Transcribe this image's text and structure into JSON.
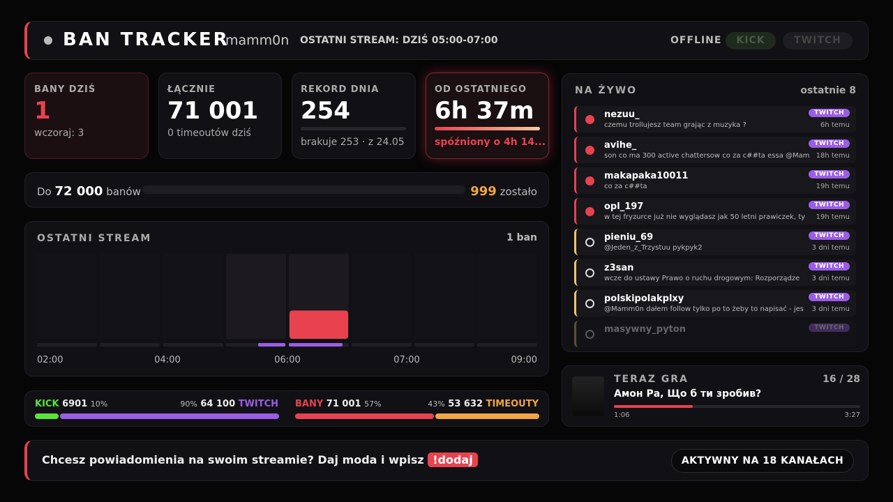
{
  "header": {
    "title": "BAN TRACKER",
    "channel": "mamm0n",
    "last_stream": "OSTATNI STREAM: DZIŚ 05:00-07:00",
    "status": "OFFLINE",
    "platforms": [
      "KICK",
      "TWITCH"
    ]
  },
  "stats": [
    {
      "label": "BANY DZIŚ",
      "value": "1",
      "sub": "wczoraj: 3"
    },
    {
      "label": "ŁĄCZNIE",
      "value": "71 001",
      "sub": "0 timeoutów dziś"
    },
    {
      "label": "REKORD DNIA",
      "value": "254",
      "sub": "brakuje 253 · z 24.05"
    },
    {
      "label": "OD OSTATNIEGO",
      "value": "6h 37m",
      "sub": "spóźniony o 4h 14..."
    }
  ],
  "goal": {
    "prefix": "Do",
    "target": "72 000",
    "unit": "banów",
    "remaining": "999",
    "remaining_label": "zostało"
  },
  "stream_chart": {
    "title": "OSTATNI STREAM",
    "summary": "1 ban",
    "values": [
      0,
      0,
      0,
      0,
      1,
      0,
      0,
      0
    ],
    "ylim": [
      0,
      3
    ],
    "x_labels": [
      "02:00",
      "04:00",
      "06:00",
      "07:00",
      "09:00"
    ],
    "color": "#e8424f"
  },
  "split": {
    "kick": {
      "label": "KICK",
      "value": "6901",
      "pct": {
        "value": 10,
        "label": "10%"
      },
      "color": "#5be33b"
    },
    "twitch": {
      "label": "TWITCH",
      "value": "64 100",
      "pct": {
        "value": 90,
        "label": "90%"
      },
      "color": "#9b5de5"
    },
    "bans": {
      "label": "BANY",
      "value": "71 001",
      "pct": {
        "value": 57,
        "label": "57%"
      },
      "color": "#e8424f"
    },
    "timeouts": {
      "label": "TIMEOUTY",
      "value": "53 632",
      "pct": {
        "value": 43,
        "label": "43%"
      },
      "color": "#f2a641"
    }
  },
  "live": {
    "title": "NA ŻYWO",
    "count_label": "ostatnie 8",
    "items": [
      {
        "type": "ban",
        "user": "nezuu_",
        "message": "czemu trollujesz team grając z muzyka ?",
        "platform": "TWITCH",
        "time": "6h temu"
      },
      {
        "type": "ban",
        "user": "avihe_",
        "message": "son co ma 300 active chattersow co za c##ta essa @Mam",
        "platform": "TWITCH",
        "time": "18h temu"
      },
      {
        "type": "ban",
        "user": "makapaka10011",
        "message": "co za c##ta",
        "platform": "TWITCH",
        "time": "19h temu"
      },
      {
        "type": "ban",
        "user": "opl_197",
        "message": "w tej fryzurce już nie wyglądasz jak 50 letni prawiczek, ty",
        "platform": "TWITCH",
        "time": "19h temu"
      },
      {
        "type": "timeout",
        "user": "pieniu_69",
        "message": "@Jeden_z_Trzystuu pykpyk2",
        "platform": "TWITCH",
        "time": "3 dni temu"
      },
      {
        "type": "timeout",
        "user": "z3san",
        "message": "wcze do ustawy Prawo o ruchu drogowym: Rozporządze",
        "platform": "TWITCH",
        "time": "3 dni temu"
      },
      {
        "type": "timeout",
        "user": "polskipolakplxy",
        "message": "@Mamm0n dałem follow tylko po to żeby to napisać - jes",
        "platform": "TWITCH",
        "time": "3 dni temu"
      },
      {
        "type": "timeout",
        "user": "masywny_pyton",
        "platform": "TWITCH"
      }
    ]
  },
  "now_playing": {
    "label": "TERAZ GRA",
    "position": "16 / 28",
    "title": "Амон Ра, Що б ти зробив?",
    "elapsed": "1:06",
    "duration": "3:27"
  },
  "footer": {
    "message": "Chcesz powiadomienia na swoim streamie? Daj moda i wpisz",
    "command": "!dodaj",
    "status": "AKTYWNY NA 18 KANAŁACH"
  }
}
